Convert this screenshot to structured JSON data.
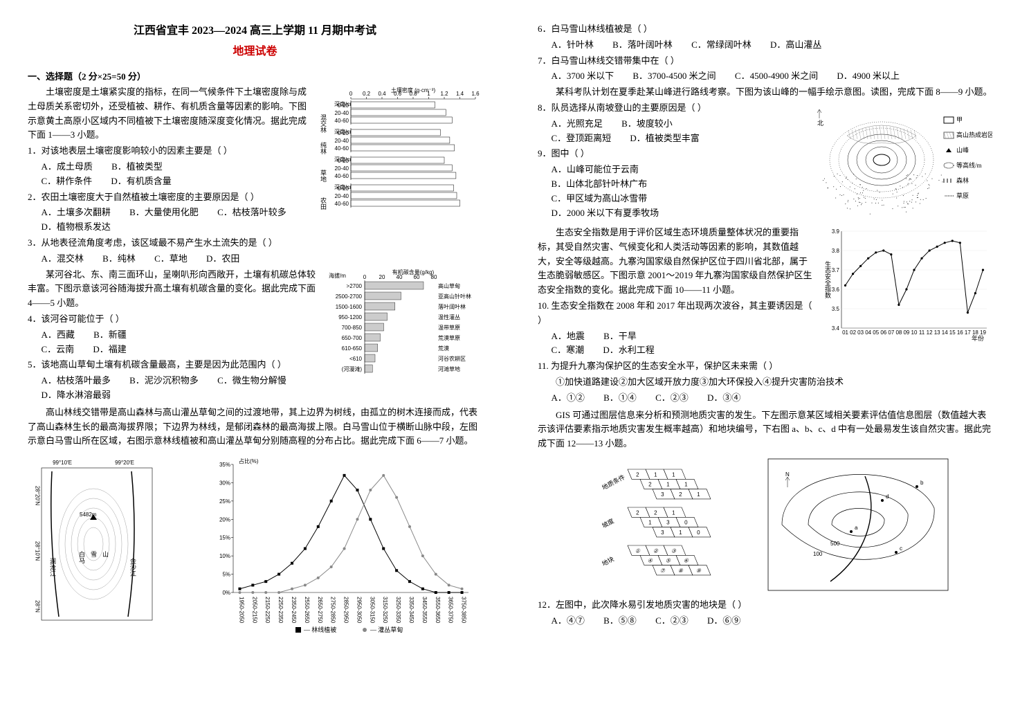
{
  "header": {
    "title": "江西省宜丰 2023—2024 高三上学期  11 月期中考试",
    "subtitle": "地理试卷"
  },
  "left": {
    "section1_head": "一、选择题（2 分×25=50 分）",
    "intro1": "土壤密度是土壤紧实度的指标，在同一气候条件下土壤密度除与成土母质关系密切外，还受植被、耕作、有机质含量等因素的影响。下图示意黄土高原小区域内不同植被下土壤密度随深度变化情况。据此完成下面 1——3 小题。",
    "q1": "1．对该地表层土壤密度影响较小的因素主要是（  ）",
    "q1_opts": [
      "A．成土母质",
      "B．植被类型",
      "C．耕作条件",
      "D．有机质含量"
    ],
    "q2": "2．农田土壤密度大于自然植被土壤密度的主要原因是（  ）",
    "q2_opts": [
      "A．土壤多次翻耕",
      "B．大量使用化肥",
      "C．枯枝落叶较多",
      "D．植物根系发达"
    ],
    "q3": "3．从地表径流角度考虑，该区域最不易产生水土流失的是（  ）",
    "q3_opts": [
      "A．混交林",
      "B．纯林",
      "C．草地",
      "D．农田"
    ],
    "intro2": "某河谷北、东、南三面环山，呈喇叭形向西敞开，土壤有机碳总体较丰富。下图示意该河谷随海拔升高土壤有机碳含量的变化。据此完成下面 4——5 小题。",
    "q4": "4．该河谷可能位于（  ）",
    "q4_opts": [
      "A．西藏",
      "B．新疆",
      "C．云南",
      "D．福建"
    ],
    "q5": "5．该地高山草甸土壤有机碳含量最高，主要是因为此范围内（  ）",
    "q5_opts": [
      "A．枯枝落叶最多",
      "B．泥沙沉积物多",
      "C．微生物分解慢",
      "D．降水淋溶最弱"
    ],
    "intro3": "高山林线交错带是高山森林与高山灌丛草甸之间的过渡地带，其上边界为树线，由孤立的树木连接而成，代表了高山森林生长的最高海拔界限；下边界为林线，是郁闭森林的最高海拔上限。白马雪山位于横断山脉中段，左图示意白马雪山所在区域，右图示意林线植被和高山灌丛草甸分别随高程的分布占比。据此完成下面 6——7 小题。",
    "soil_chart": {
      "title": "土壤密度 (g·cm⁻³)",
      "x_values": [
        0,
        0.2,
        0.4,
        0.6,
        0.8,
        1.0,
        1.2,
        1.4,
        1.6
      ],
      "groups": [
        "混交林",
        "纯林",
        "草地",
        "农田"
      ],
      "depth_labels": [
        "0-20",
        "20-40",
        "40-60"
      ],
      "data": {
        "混交林": [
          1.08,
          1.22,
          1.3
        ],
        "纯林": [
          1.15,
          1.27,
          1.33
        ],
        "草地": [
          1.2,
          1.3,
          1.35
        ],
        "农田": [
          1.32,
          1.36,
          1.4
        ]
      },
      "bar_color": "#ffffff",
      "border": "#000000"
    },
    "carbon_chart": {
      "title": "有机碳含量(g/kg)",
      "x_ticks": [
        0,
        20,
        40,
        60,
        80
      ],
      "rows": [
        {
          "alt": ">2700",
          "veg": "高山草甸",
          "val": 68
        },
        {
          "alt": "2500-2700",
          "veg": "亚高山针叶林",
          "val": 42
        },
        {
          "alt": "1500-1600",
          "veg": "落叶阔叶林",
          "val": 35
        },
        {
          "alt": "950-1200",
          "veg": "温性灌丛",
          "val": 26
        },
        {
          "alt": "700-850",
          "veg": "温带草原",
          "val": 22
        },
        {
          "alt": "650-700",
          "veg": "荒漠草原",
          "val": 18
        },
        {
          "alt": "610-650",
          "veg": "荒漠",
          "val": 15
        },
        {
          "alt": "<610",
          "veg": "河谷农耕区",
          "val": 12
        },
        {
          "alt": "(河漫滩)",
          "veg": "河滩草地",
          "val": 9
        }
      ],
      "bar_fill": "#cccccc"
    },
    "map": {
      "peak": "5482m",
      "mountain": "白马雪山",
      "river_left": "澜沧江",
      "river_right": "金沙江",
      "lon_ticks": [
        "99°10′E",
        "99°20′E"
      ],
      "lat_ticks": [
        "28°N",
        "28°10′N",
        "28°20′N"
      ]
    },
    "linebar_chart": {
      "ylabel": "占比(%)",
      "y_ticks": [
        0,
        5,
        10,
        15,
        20,
        25,
        30,
        35
      ],
      "x_categories": [
        "1950-2050",
        "2050-2150",
        "2150-2250",
        "2250-2350",
        "2350-2450",
        "2550-2650",
        "2650-2750",
        "2750-2850",
        "2850-2950",
        "2950-3050",
        "3050-3150",
        "3150-3250",
        "3250-3350",
        "3350-3450",
        "3450-3550",
        "3550-3650",
        "3650-3750",
        "3750-3850"
      ],
      "series": {
        "林线植被": [
          1,
          2,
          3,
          5,
          8,
          12,
          18,
          25,
          32,
          28,
          20,
          12,
          6,
          3,
          1,
          0,
          0,
          0
        ],
        "灌丛草甸": [
          0,
          0,
          0,
          0,
          1,
          2,
          4,
          7,
          12,
          20,
          28,
          32,
          26,
          18,
          10,
          5,
          2,
          1
        ]
      },
      "legend": [
        "林线植被",
        "灌丛草甸"
      ],
      "colors": {
        "林线植被": "#000000",
        "灌丛草甸": "#888888"
      }
    }
  },
  "right": {
    "q6": "6．白马雪山林线植被是（  ）",
    "q6_opts": [
      "A．针叶林",
      "B．落叶阔叶林",
      "C．常绿阔叶林",
      "D．高山灌丛"
    ],
    "q7": "7．白马雪山林线交错带集中在（  ）",
    "q7_opts": [
      "A．3700 米以下",
      "B．3700-4500 米之间",
      "C．4500-4900 米之间",
      "D．4900 米以上"
    ],
    "intro8": "某科考队计划在夏季赴某山峰进行路线考察。下图为该山峰的一幅手绘示意图。读图，完成下面 8——9 小题。",
    "q8": "8．队员选择从南坡登山的主要原因是（  ）",
    "q8_opts": [
      "A．光照充足",
      "B．坡度较小",
      "C．登顶距离短",
      "D．植被类型丰富"
    ],
    "q9": "9．图中（  ）",
    "q9_opts": [
      "A．山峰可能位于云南",
      "B．山体北部针叶林广布",
      "C．甲区域为高山冰雪带",
      "D．2000 米以下有夏季牧场"
    ],
    "intro10": "生态安全指数是用于评价区域生态环境质量整体状况的重要指标，其受自然灾害、气候变化和人类活动等因素的影响，其数值越大，安全等级越高。九寨沟国家级自然保护区位于四川省北部，属于生态脆弱敏感区。下图示意 2001～2019 年九寨沟国家级自然保护区生态安全指数的变化。据此完成下面 10——11 小题。",
    "q10": "10. 生态安全指数在 2008 年和 2017 年出现两次波谷，其主要诱因是（  ）",
    "q10_opts": [
      "A．地震",
      "B．干旱",
      "C．寒潮",
      "D．水利工程"
    ],
    "q11": "11. 为提升九寨沟保护区的生态安全水平，保护区未来需（  ）",
    "q11_sub": "①加快道路建设②加大区域开放力度③加大环保投入④提升灾害防治技术",
    "q11_opts": [
      "A．①②",
      "B．①④",
      "C．②③",
      "D．③④"
    ],
    "intro12": "GIS 可通过图层信息来分析和预测地质灾害的发生。下左图示意某区域相关要素评估值信息图层（数值越大表示该评估要素指示地质灾害发生概率越高）和地块编号，下右图 a、b、c、d 中有一处最易发生该自然灾害。据此完成下面 12——13 小题。",
    "q12": "12．左图中，此次降水易引发地质灾害的地块是（  ）",
    "q12_opts": [
      "A．④⑦",
      "B．⑤⑧",
      "C．②③",
      "D．⑥⑨"
    ],
    "mountain_sketch": {
      "legend": [
        "甲",
        "高山热成岩区",
        "山峰",
        "等高线/m",
        "森林",
        "草原"
      ],
      "north": "北"
    },
    "safety_chart": {
      "ylabel": "生态安全指数",
      "y_ticks": [
        3.4,
        3.5,
        3.6,
        3.7,
        3.8,
        3.9
      ],
      "x_years": [
        "01",
        "02",
        "03",
        "04",
        "05",
        "06",
        "07",
        "08",
        "09",
        "10",
        "11",
        "12",
        "13",
        "14",
        "15",
        "16",
        "17",
        "18",
        "19"
      ],
      "x_suffix": "年份",
      "values": [
        3.62,
        3.68,
        3.72,
        3.76,
        3.79,
        3.8,
        3.78,
        3.52,
        3.6,
        3.7,
        3.76,
        3.8,
        3.82,
        3.84,
        3.85,
        3.84,
        3.48,
        3.58,
        3.7
      ],
      "line_color": "#000000",
      "marker": "circle"
    },
    "gis_left": {
      "layers": [
        "地质条件",
        "坡度",
        "地块"
      ],
      "grid1": [
        [
          2,
          1,
          1
        ],
        [
          2,
          1,
          1
        ],
        [
          3,
          2,
          1
        ]
      ],
      "grid2": [
        [
          2,
          2,
          1
        ],
        [
          1,
          3,
          0
        ],
        [
          3,
          1,
          0
        ]
      ],
      "grid3": [
        [
          "①",
          "②",
          "③"
        ],
        [
          "④",
          "⑤",
          "⑥"
        ],
        [
          "⑦",
          "⑧",
          "⑨"
        ]
      ]
    },
    "gis_right": {
      "contours": [
        "100",
        "500"
      ],
      "points": [
        "a",
        "b",
        "c",
        "d"
      ],
      "north": "N"
    }
  }
}
